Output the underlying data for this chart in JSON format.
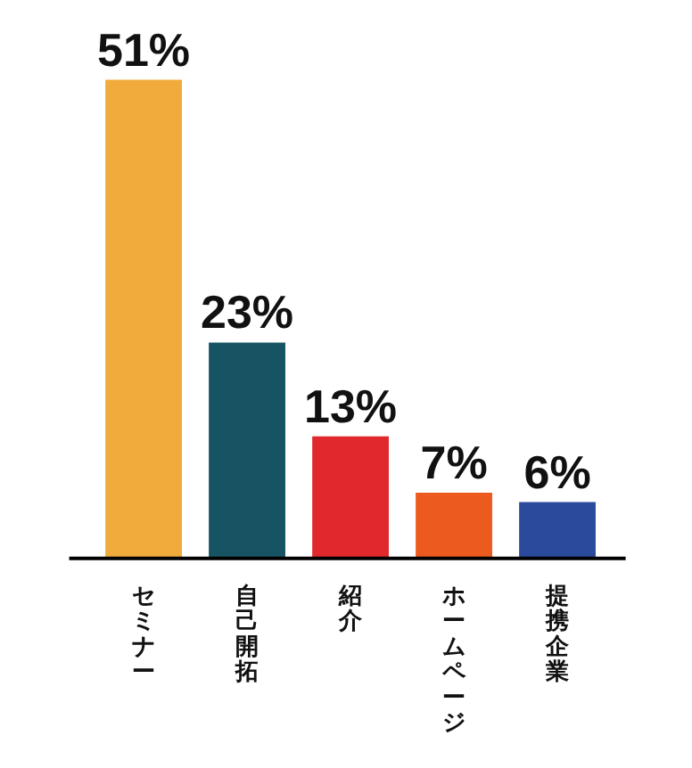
{
  "chart_data": {
    "type": "bar",
    "categories": [
      "セミナー",
      "自己開拓",
      "紹介",
      "ホームページ",
      "提携企業"
    ],
    "values": [
      51,
      23,
      13,
      7,
      6
    ],
    "colors": [
      "#f0ab3c",
      "#175463",
      "#e0282d",
      "#ec5a1f",
      "#2a4b9b"
    ],
    "value_labels": [
      "51%",
      "23%",
      "13%",
      "7%",
      "6%"
    ]
  }
}
